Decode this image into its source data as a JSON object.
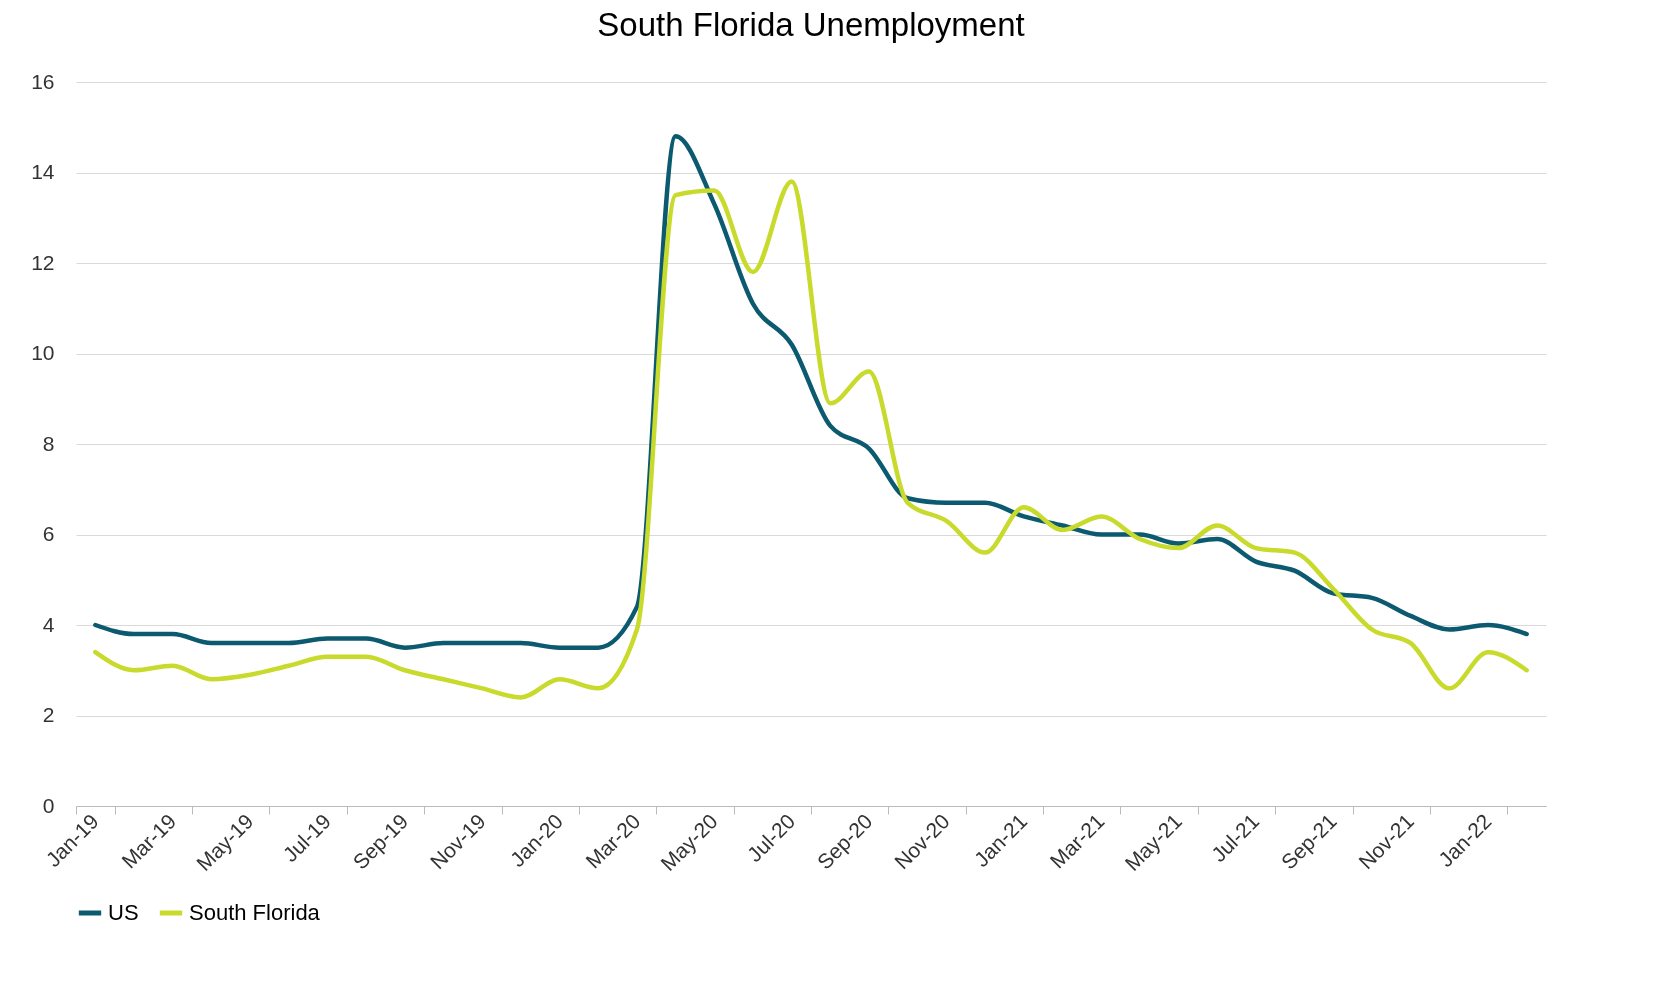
{
  "chart_data": {
    "type": "line",
    "title": "South Florida Unemployment",
    "categories": [
      "Jan-19",
      null,
      "Mar-19",
      null,
      "May-19",
      null,
      "Jul-19",
      null,
      "Sep-19",
      null,
      "Nov-19",
      null,
      "Jan-20",
      null,
      "Mar-20",
      null,
      "May-20",
      null,
      "Jul-20",
      null,
      "Sep-20",
      null,
      "Nov-20",
      null,
      "Jan-21",
      null,
      "Mar-21",
      null,
      "May-21",
      null,
      "Jul-21",
      null,
      "Sep-21",
      null,
      "Nov-21",
      null,
      "Jan-22",
      null
    ],
    "series": [
      {
        "name": "US",
        "color": "#0b5a70",
        "values": [
          4.0,
          3.8,
          3.8,
          3.6,
          3.6,
          3.6,
          3.7,
          3.7,
          3.5,
          3.6,
          3.6,
          3.6,
          3.5,
          3.5,
          4.4,
          14.8,
          13.3,
          11.1,
          10.2,
          8.4,
          7.9,
          6.8,
          6.7,
          6.7,
          6.4,
          6.2,
          6.0,
          6.0,
          5.8,
          5.9,
          5.4,
          5.2,
          4.7,
          4.6,
          4.2,
          3.9,
          4.0,
          3.8
        ]
      },
      {
        "name": "South Florida",
        "color": "#c8da2b",
        "values": [
          3.4,
          3.0,
          3.1,
          2.8,
          2.9,
          3.1,
          3.3,
          3.3,
          3.0,
          2.8,
          2.6,
          2.4,
          2.8,
          2.6,
          3.9,
          13.5,
          13.6,
          11.8,
          13.8,
          8.9,
          9.6,
          6.7,
          6.3,
          5.6,
          6.6,
          6.1,
          6.4,
          5.9,
          5.7,
          6.2,
          5.7,
          5.6,
          4.8,
          3.9,
          3.6,
          2.6,
          3.4,
          3.0
        ]
      }
    ],
    "ylim": [
      0,
      16
    ],
    "yticks": [
      0,
      2,
      4,
      6,
      8,
      10,
      12,
      14,
      16
    ],
    "grid": "y",
    "legend": "bottom",
    "marker": "none",
    "line_style": "solid"
  }
}
